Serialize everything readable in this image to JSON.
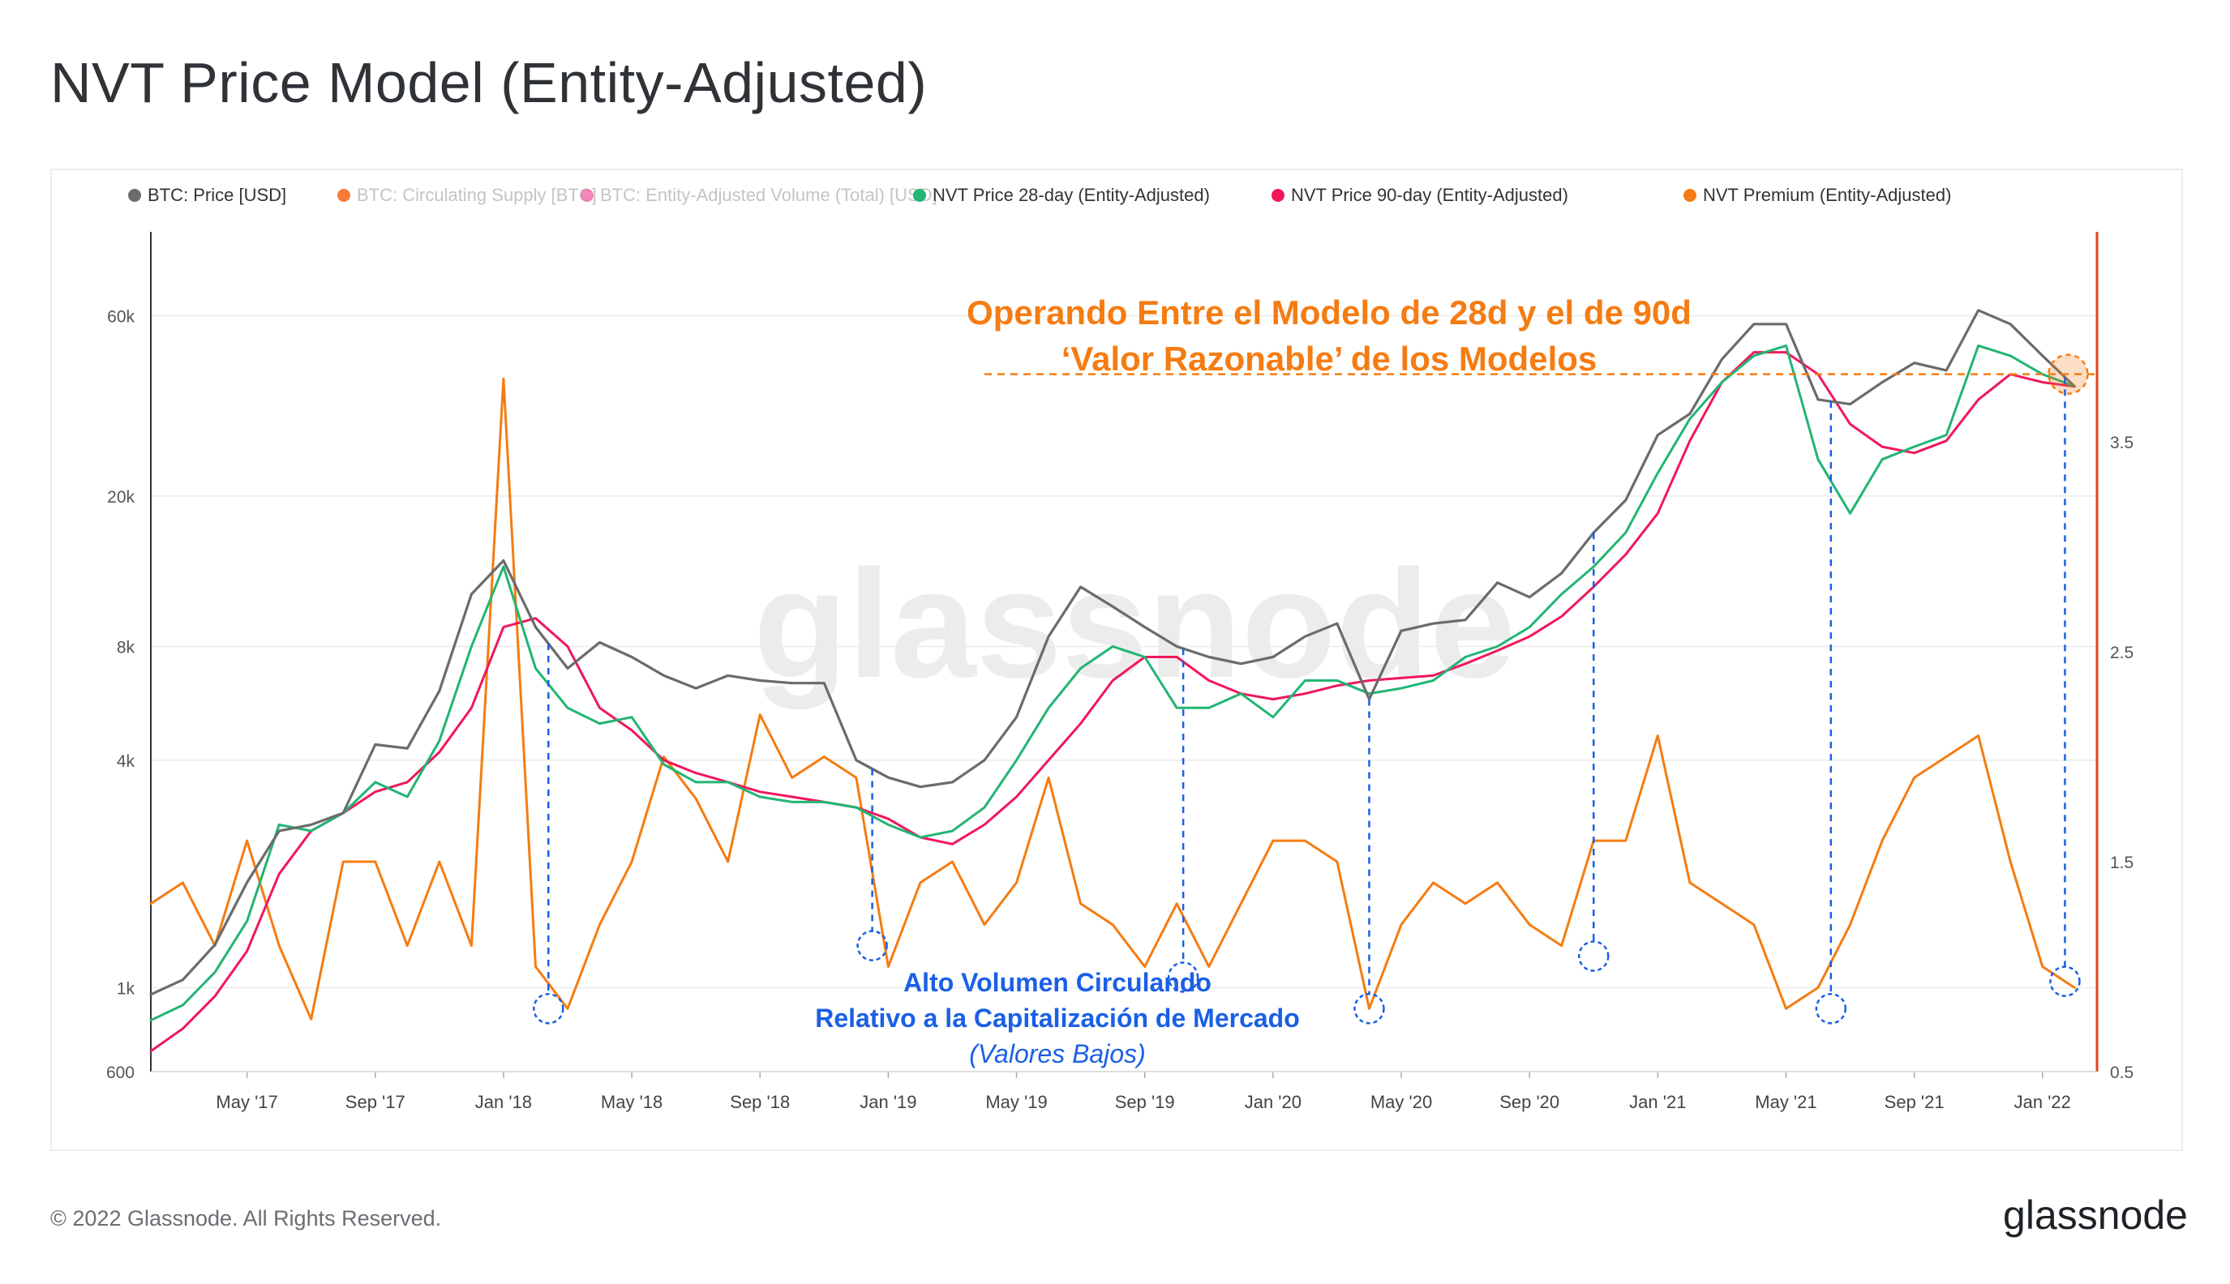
{
  "title": "NVT Price Model (Entity-Adjusted)",
  "footer": {
    "copyright": "© 2022 Glassnode. All Rights Reserved.",
    "logo_text": "glassnode"
  },
  "watermark": "glassnode",
  "colors": {
    "price": "#6b6b6b",
    "supply": "#f25c05",
    "volume": "#f06aa8",
    "nvt28": "#22b573",
    "nvt90": "#f0185a",
    "premium": "#f57c12",
    "annotation_orange": "#f57c12",
    "annotation_blue": "#1a5fe6",
    "right_axis": "#e8401c"
  },
  "annotations": {
    "top_line1": "Operando Entre el Modelo de 28d y el de 90d",
    "top_line2": "‘Valor Razonable’ de los Modelos",
    "bottom_line1": "Alto Volumen Circulando",
    "bottom_line2": "Relativo a la Capitalización de Mercado",
    "bottom_line3": "(Valores Bajos)"
  },
  "chart_data": {
    "type": "line",
    "title": "NVT Price Model (Entity-Adjusted)",
    "x_ticks": [
      "May '17",
      "Sep '17",
      "Jan '18",
      "May '18",
      "Sep '18",
      "Jan '19",
      "May '19",
      "Sep '19",
      "Jan '20",
      "May '20",
      "Sep '20",
      "Jan '21",
      "May '21",
      "Sep '21",
      "Jan '22"
    ],
    "x_tick_t": [
      3,
      7,
      11,
      15,
      19,
      23,
      27,
      31,
      35,
      39,
      43,
      47,
      51,
      55,
      59
    ],
    "x_range_t": [
      0,
      60.7
    ],
    "y_left": {
      "scale": "log",
      "range": [
        600,
        100000
      ],
      "ticks": [
        600,
        1000,
        4000,
        8000,
        20000,
        60000
      ],
      "tick_labels": [
        "600",
        "1k",
        "4k",
        "8k",
        "20k",
        "60k"
      ]
    },
    "y_right": {
      "scale": "linear",
      "range": [
        0.5,
        4.5
      ],
      "ticks": [
        0.5,
        1.5,
        2.5,
        3.5
      ],
      "tick_labels": [
        "0.5",
        "1.5",
        "2.5",
        "3.5"
      ]
    },
    "legend": [
      {
        "key": "price",
        "label": "BTC: Price [USD]",
        "active": true
      },
      {
        "key": "supply",
        "label": "BTC: Circulating Supply [BTC]",
        "active": false
      },
      {
        "key": "volume",
        "label": "BTC: Entity-Adjusted Volume (Total) [USD]",
        "active": false
      },
      {
        "key": "nvt28",
        "label": "NVT Price 28-day (Entity-Adjusted)",
        "active": true
      },
      {
        "key": "nvt90",
        "label": "NVT Price 90-day (Entity-Adjusted)",
        "active": true
      },
      {
        "key": "premium",
        "label": "NVT Premium (Entity-Adjusted)",
        "active": true
      }
    ],
    "series": [
      {
        "name": "BTC: Price [USD]",
        "key": "price",
        "axis": "left",
        "t": [
          0,
          1,
          2,
          3,
          4,
          5,
          6,
          7,
          8,
          9,
          10,
          11,
          12,
          13,
          14,
          15,
          16,
          17,
          18,
          19,
          20,
          21,
          22,
          23,
          24,
          25,
          26,
          27,
          28,
          29,
          30,
          31,
          32,
          33,
          34,
          35,
          36,
          37,
          38,
          39,
          40,
          41,
          42,
          43,
          44,
          45,
          46,
          47,
          48,
          49,
          50,
          51,
          52,
          53,
          54,
          55,
          56,
          57,
          58,
          59,
          60
        ],
        "values": [
          960,
          1050,
          1300,
          1900,
          2600,
          2700,
          2900,
          4400,
          4300,
          6100,
          11000,
          13500,
          9000,
          7000,
          8200,
          7500,
          6700,
          6200,
          6700,
          6500,
          6400,
          6400,
          4000,
          3600,
          3400,
          3500,
          4000,
          5200,
          8500,
          11500,
          10200,
          9000,
          8000,
          7500,
          7200,
          7500,
          8500,
          9200,
          5800,
          8800,
          9200,
          9400,
          11800,
          10800,
          12500,
          16000,
          19500,
          29000,
          33000,
          46000,
          57000,
          57000,
          36000,
          35000,
          40000,
          45000,
          43000,
          62000,
          57000,
          47000,
          39000
        ]
      },
      {
        "name": "NVT Price 28-day (Entity-Adjusted)",
        "key": "nvt28",
        "axis": "left",
        "t": [
          0,
          1,
          2,
          3,
          4,
          5,
          6,
          7,
          8,
          9,
          10,
          11,
          12,
          13,
          14,
          15,
          16,
          17,
          18,
          19,
          20,
          21,
          22,
          23,
          24,
          25,
          26,
          27,
          28,
          29,
          30,
          31,
          32,
          33,
          34,
          35,
          36,
          37,
          38,
          39,
          40,
          41,
          42,
          43,
          44,
          45,
          46,
          47,
          48,
          49,
          50,
          51,
          52,
          53,
          54,
          55,
          56,
          57,
          58,
          59,
          60
        ],
        "values": [
          820,
          900,
          1100,
          1500,
          2700,
          2600,
          2900,
          3500,
          3200,
          4500,
          8000,
          13000,
          7000,
          5500,
          5000,
          5200,
          3900,
          3500,
          3500,
          3200,
          3100,
          3100,
          3000,
          2700,
          2500,
          2600,
          3000,
          4000,
          5500,
          7000,
          8000,
          7500,
          5500,
          5500,
          6000,
          5200,
          6500,
          6500,
          6000,
          6200,
          6500,
          7500,
          8000,
          9000,
          11000,
          13000,
          16000,
          23000,
          32000,
          40000,
          47000,
          50000,
          25000,
          18000,
          25000,
          27000,
          29000,
          50000,
          47000,
          42000,
          39000
        ]
      },
      {
        "name": "NVT Price 90-day (Entity-Adjusted)",
        "key": "nvt90",
        "axis": "left",
        "t": [
          0,
          1,
          2,
          3,
          4,
          5,
          6,
          7,
          8,
          9,
          10,
          11,
          12,
          13,
          14,
          15,
          16,
          17,
          18,
          19,
          20,
          21,
          22,
          23,
          24,
          25,
          26,
          27,
          28,
          29,
          30,
          31,
          32,
          33,
          34,
          35,
          36,
          37,
          38,
          39,
          40,
          41,
          42,
          43,
          44,
          45,
          46,
          47,
          48,
          49,
          50,
          51,
          52,
          53,
          54,
          55,
          56,
          57,
          58,
          59,
          60
        ],
        "values": [
          680,
          780,
          950,
          1250,
          2000,
          2600,
          2900,
          3300,
          3500,
          4200,
          5500,
          9000,
          9500,
          8000,
          5500,
          4800,
          4000,
          3700,
          3500,
          3300,
          3200,
          3100,
          3000,
          2800,
          2500,
          2400,
          2700,
          3200,
          4000,
          5000,
          6500,
          7500,
          7500,
          6500,
          6000,
          5800,
          6000,
          6300,
          6500,
          6600,
          6700,
          7200,
          7800,
          8500,
          9600,
          11500,
          14000,
          18000,
          28000,
          40000,
          48000,
          48000,
          42000,
          31000,
          27000,
          26000,
          28000,
          36000,
          42000,
          40000,
          39000
        ]
      },
      {
        "name": "NVT Premium (Entity-Adjusted)",
        "key": "premium",
        "axis": "right",
        "t": [
          0,
          1,
          2,
          3,
          4,
          5,
          6,
          7,
          8,
          9,
          10,
          11,
          12,
          13,
          14,
          15,
          16,
          17,
          18,
          19,
          20,
          21,
          22,
          23,
          24,
          25,
          26,
          27,
          28,
          29,
          30,
          31,
          32,
          33,
          34,
          35,
          36,
          37,
          38,
          39,
          40,
          41,
          42,
          43,
          44,
          45,
          46,
          47,
          48,
          49,
          50,
          51,
          52,
          53,
          54,
          55,
          56,
          57,
          58,
          59,
          60
        ],
        "values": [
          1.3,
          1.4,
          1.1,
          1.6,
          1.1,
          0.75,
          1.5,
          1.5,
          1.1,
          1.5,
          1.1,
          3.8,
          1.0,
          0.8,
          1.2,
          1.5,
          2.0,
          1.8,
          1.5,
          2.2,
          1.9,
          2.0,
          1.9,
          1.0,
          1.4,
          1.5,
          1.2,
          1.4,
          1.9,
          1.3,
          1.2,
          1.0,
          1.3,
          1.0,
          1.3,
          1.6,
          1.6,
          1.5,
          0.8,
          1.2,
          1.4,
          1.3,
          1.4,
          1.2,
          1.1,
          1.6,
          1.6,
          2.1,
          1.4,
          1.3,
          1.2,
          0.8,
          0.9,
          1.2,
          1.6,
          1.9,
          2.0,
          2.1,
          1.5,
          1.0,
          0.9
        ]
      }
    ],
    "low_markers_t": [
      12.4,
      22.5,
      32.2,
      38.0,
      45.0,
      52.4,
      59.7
    ],
    "low_markers_premium": [
      0.8,
      1.1,
      0.95,
      0.8,
      1.05,
      0.8,
      0.93
    ],
    "fair_value_line_usd": 42000,
    "fair_value_line_t_range": [
      26.0,
      61.0
    ]
  }
}
